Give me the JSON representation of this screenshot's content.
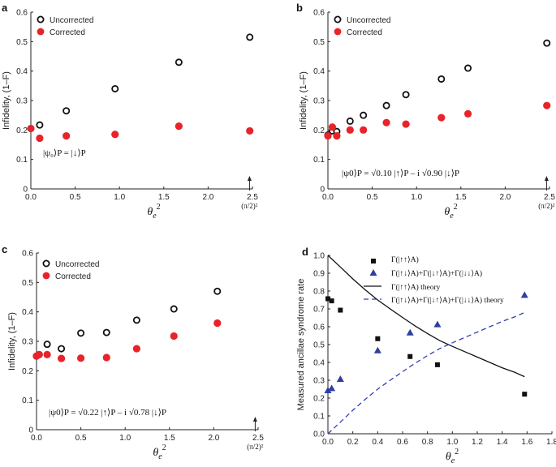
{
  "chart_data": [
    {
      "panel": "a",
      "type": "scatter",
      "xlabel_sym": "θ",
      "xlabel_sub": "e",
      "xlabel_sup": "2",
      "ylabel": "Infidelity, (1–F)",
      "xlim": [
        0,
        2.5
      ],
      "ylim": [
        0,
        0.6
      ],
      "xticks": [
        "0.0",
        "0.5",
        "1.0",
        "1.5",
        "2.0",
        "2.5"
      ],
      "xtick_values": [
        0,
        0.5,
        1.0,
        1.5,
        2.0,
        2.5
      ],
      "yticks": [
        "0",
        "0.1",
        "0.2",
        "0.3",
        "0.4",
        "0.5",
        "0.6"
      ],
      "ytick_values": [
        0,
        0.1,
        0.2,
        0.3,
        0.4,
        0.5,
        0.6
      ],
      "marker_value": 2.467,
      "marker_label": "(π/2)²",
      "state_label": "|ψ₀⟩P = |↓⟩P",
      "legend": [
        "Uncorrected",
        "Corrected"
      ],
      "series": [
        {
          "name": "Uncorrected",
          "style": "open",
          "x": [
            0.1,
            0.4,
            0.95,
            1.67,
            2.47
          ],
          "y": [
            0.217,
            0.265,
            0.34,
            0.43,
            0.515
          ]
        },
        {
          "name": "Corrected",
          "style": "filled",
          "x": [
            0.0,
            0.1,
            0.4,
            0.95,
            1.67,
            2.47
          ],
          "y": [
            0.205,
            0.172,
            0.18,
            0.185,
            0.213,
            0.197
          ]
        }
      ]
    },
    {
      "panel": "b",
      "type": "scatter",
      "xlabel_sym": "θ",
      "xlabel_sub": "e",
      "xlabel_sup": "2",
      "ylabel": "Infidelity, (1–F)",
      "xlim": [
        0,
        2.5
      ],
      "ylim": [
        0,
        0.6
      ],
      "xticks": [
        "0.0",
        "0.5",
        "1.0",
        "1.5",
        "2.0",
        "2.5"
      ],
      "xtick_values": [
        0,
        0.5,
        1.0,
        1.5,
        2.0,
        2.5
      ],
      "yticks": [
        "0",
        "0.1",
        "0.2",
        "0.3",
        "0.4",
        "0.5",
        "0.6"
      ],
      "ytick_values": [
        0,
        0.1,
        0.2,
        0.3,
        0.4,
        0.5,
        0.6
      ],
      "marker_value": 2.467,
      "marker_label": "(π/2)²",
      "state_label": "|ψ0⟩P = √0.10 |↑⟩P – i √0.90 |↓⟩P",
      "legend": [
        "Uncorrected",
        "Corrected"
      ],
      "series": [
        {
          "name": "Uncorrected",
          "style": "open",
          "x": [
            0.0,
            0.05,
            0.1,
            0.25,
            0.4,
            0.66,
            0.88,
            1.28,
            1.58,
            2.47
          ],
          "y": [
            0.183,
            0.197,
            0.195,
            0.23,
            0.25,
            0.283,
            0.32,
            0.373,
            0.41,
            0.495
          ]
        },
        {
          "name": "Corrected",
          "style": "filled",
          "x": [
            0.0,
            0.05,
            0.1,
            0.25,
            0.4,
            0.66,
            0.88,
            1.28,
            1.58,
            2.47
          ],
          "y": [
            0.18,
            0.21,
            0.18,
            0.2,
            0.2,
            0.225,
            0.22,
            0.242,
            0.255,
            0.283
          ]
        }
      ]
    },
    {
      "panel": "c",
      "type": "scatter",
      "xlabel_sym": "θ",
      "xlabel_sub": "e",
      "xlabel_sup": "2",
      "ylabel": "Infidelity, (1–F)",
      "xlim": [
        0,
        2.5
      ],
      "ylim": [
        0,
        0.6
      ],
      "xticks": [
        "0.0",
        "0.5",
        "1.0",
        "1.5",
        "2.0",
        "2.5"
      ],
      "xtick_values": [
        0,
        0.5,
        1.0,
        1.5,
        2.0,
        2.5
      ],
      "yticks": [
        "0",
        "0.1",
        "0.2",
        "0.3",
        "0.4",
        "0.5",
        "0.6"
      ],
      "ytick_values": [
        0,
        0.1,
        0.2,
        0.3,
        0.4,
        0.5,
        0.6
      ],
      "marker_value": 2.467,
      "marker_label": "(π/2)²",
      "state_label": "|ψ0⟩P = √0.22 |↑⟩P – i √0.78 |↓⟩P",
      "legend": [
        "Uncorrected",
        "Corrected"
      ],
      "series": [
        {
          "name": "Uncorrected",
          "style": "open",
          "x": [
            0.0,
            0.03,
            0.12,
            0.28,
            0.5,
            0.79,
            1.13,
            1.55,
            2.04
          ],
          "y": [
            0.25,
            0.255,
            0.29,
            0.275,
            0.328,
            0.33,
            0.372,
            0.41,
            0.47
          ]
        },
        {
          "name": "Corrected",
          "style": "filled",
          "x": [
            0.0,
            0.03,
            0.12,
            0.28,
            0.5,
            0.79,
            1.13,
            1.55,
            2.04
          ],
          "y": [
            0.25,
            0.255,
            0.255,
            0.242,
            0.243,
            0.245,
            0.275,
            0.318,
            0.362
          ]
        }
      ]
    },
    {
      "panel": "d",
      "type": "scatter",
      "xlabel_sym": "θ",
      "xlabel_sub": "e",
      "xlabel_sup": "2",
      "ylabel": "Measured ancillae syndrome rate",
      "xlim": [
        0,
        1.8
      ],
      "ylim": [
        0,
        1.0
      ],
      "xticks": [
        "0.0",
        "0.2",
        "0.4",
        "0.6",
        "0.8",
        "1.0",
        "1.2",
        "1.4",
        "1.6",
        "1.8"
      ],
      "xtick_values": [
        0,
        0.2,
        0.4,
        0.6,
        0.8,
        1.0,
        1.2,
        1.4,
        1.6,
        1.8
      ],
      "yticks": [
        "0.0",
        "0.1",
        "0.2",
        "0.3",
        "0.4",
        "0.5",
        "0.6",
        "0.7",
        "0.8",
        "0.9",
        "1.0"
      ],
      "ytick_values": [
        0,
        0.1,
        0.2,
        0.3,
        0.4,
        0.5,
        0.6,
        0.7,
        0.8,
        0.9,
        1.0
      ],
      "legend": [
        "Γ(|↑↑⟩A)",
        "Γ(|↑↓⟩A)+Γ(|↓↑⟩A)+Γ(|↓↓⟩A)",
        "Γ(|↑↑⟩A) theory",
        "Γ(|↑↓⟩A)+Γ(|↓↑⟩A)+Γ(|↓↓⟩A) theory"
      ],
      "series": [
        {
          "name": "Γ(|↑↑⟩A)",
          "style": "square",
          "x": [
            0.0,
            0.03,
            0.1,
            0.4,
            0.66,
            0.88,
            1.58
          ],
          "y": [
            0.757,
            0.745,
            0.693,
            0.533,
            0.433,
            0.387,
            0.222
          ]
        },
        {
          "name": "Γ(|↑↓⟩A)+Γ(|↓↑⟩A)+Γ(|↓↓⟩A)",
          "style": "triangle",
          "x": [
            0.0,
            0.03,
            0.1,
            0.4,
            0.66,
            0.88,
            1.58
          ],
          "y": [
            0.243,
            0.255,
            0.307,
            0.467,
            0.567,
            0.613,
            0.778
          ]
        },
        {
          "name": "Γ(|↑↑⟩A) theory",
          "style": "solid-line",
          "x": [
            0.0,
            0.1,
            0.2,
            0.3,
            0.4,
            0.5,
            0.6,
            0.7,
            0.8,
            0.9,
            1.0,
            1.1,
            1.2,
            1.3,
            1.4,
            1.5,
            1.58
          ],
          "y": [
            1.0,
            0.935,
            0.868,
            0.807,
            0.75,
            0.7,
            0.652,
            0.605,
            0.562,
            0.522,
            0.49,
            0.46,
            0.43,
            0.4,
            0.37,
            0.345,
            0.32
          ]
        },
        {
          "name": "Γ(|↑↓⟩A)+Γ(|↓↑⟩A)+Γ(|↓↓⟩A) theory",
          "style": "dashed-line",
          "x": [
            0.0,
            0.1,
            0.2,
            0.3,
            0.4,
            0.5,
            0.6,
            0.7,
            0.8,
            0.9,
            1.0,
            1.1,
            1.2,
            1.3,
            1.4,
            1.5,
            1.58
          ],
          "y": [
            0.0,
            0.065,
            0.132,
            0.193,
            0.25,
            0.3,
            0.348,
            0.395,
            0.438,
            0.478,
            0.51,
            0.54,
            0.57,
            0.6,
            0.63,
            0.655,
            0.68
          ]
        }
      ]
    }
  ],
  "colors": {
    "open_stroke": "#111111",
    "corrected_fill": "#e8232a",
    "triangle_fill": "#2f3f9e",
    "square_fill": "#111111",
    "axis": "#222222",
    "dashed_line": "#2f3fb0"
  }
}
